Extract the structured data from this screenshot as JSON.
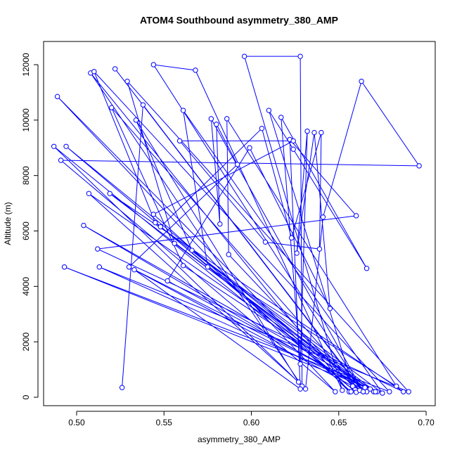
{
  "chart_data": {
    "type": "line",
    "title": "ATOM4 Southbound asymmetry_380_AMP",
    "x_label": "asymmetry_380_AMP",
    "y_label": "Altitude (m)",
    "color": "#0000ff",
    "markers": true,
    "xlim": [
      0.4811,
      0.7052
    ],
    "ylim": [
      -304,
      12837
    ],
    "xticks": [
      {
        "value": 0.5,
        "label": "0.50"
      },
      {
        "value": 0.55,
        "label": "0.55"
      },
      {
        "value": 0.6,
        "label": "0.60"
      },
      {
        "value": 0.65,
        "label": "0.65"
      },
      {
        "value": 0.7,
        "label": "0.70"
      }
    ],
    "yticks": [
      0,
      2000,
      4000,
      6000,
      8000,
      10000,
      12000
    ],
    "x": [
      0.526,
      0.538,
      0.663,
      0.522,
      0.664,
      0.544,
      0.568,
      0.652,
      0.596,
      0.628,
      0.629,
      0.508,
      0.656,
      0.489,
      0.648,
      0.491,
      0.696,
      0.663,
      0.641,
      0.631,
      0.487,
      0.66,
      0.494,
      0.666,
      0.504,
      0.672,
      0.493,
      0.679,
      0.51,
      0.545,
      0.662,
      0.52,
      0.561,
      0.668,
      0.513,
      0.69,
      0.529,
      0.556,
      0.67,
      0.507,
      0.627,
      0.534,
      0.566,
      0.675,
      0.561,
      0.575,
      0.683,
      0.586,
      0.587,
      0.658,
      0.61,
      0.624,
      0.666,
      0.617,
      0.628,
      0.632,
      0.626,
      0.636,
      0.645,
      0.599,
      0.552,
      0.665,
      0.519,
      0.687,
      0.512,
      0.66,
      0.622,
      0.628,
      0.533,
      0.664,
      0.577,
      0.582,
      0.58,
      0.592,
      0.53,
      0.671,
      0.548,
      0.606,
      0.623,
      0.64,
      0.639,
      0.608,
      0.559,
      0.624,
      0.544,
      0.657
    ],
    "y": [
      350,
      10550,
      250,
      11850,
      200,
      12000,
      11800,
      250,
      12300,
      12300,
      400,
      11700,
      200,
      10850,
      200,
      8550,
      8350,
      11400,
      6500,
      300,
      9050,
      180,
      9050,
      200,
      6200,
      200,
      4700,
      200,
      11750,
      6300,
      250,
      10450,
      4750,
      300,
      4700,
      200,
      11400,
      5550,
      200,
      7350,
      550,
      10000,
      5300,
      150,
      10350,
      4700,
      400,
      10050,
      5150,
      400,
      10350,
      8950,
      4650,
      10100,
      1200,
      9600,
      5200,
      9550,
      3200,
      9000,
      4200,
      350,
      7350,
      200,
      5350,
      6550,
      9300,
      300,
      4600,
      200,
      10050,
      6250,
      9850,
      8400,
      4700,
      200,
      6150,
      9700,
      5750,
      9550,
      5350,
      5600,
      9250,
      9250,
      6600,
      200
    ]
  }
}
